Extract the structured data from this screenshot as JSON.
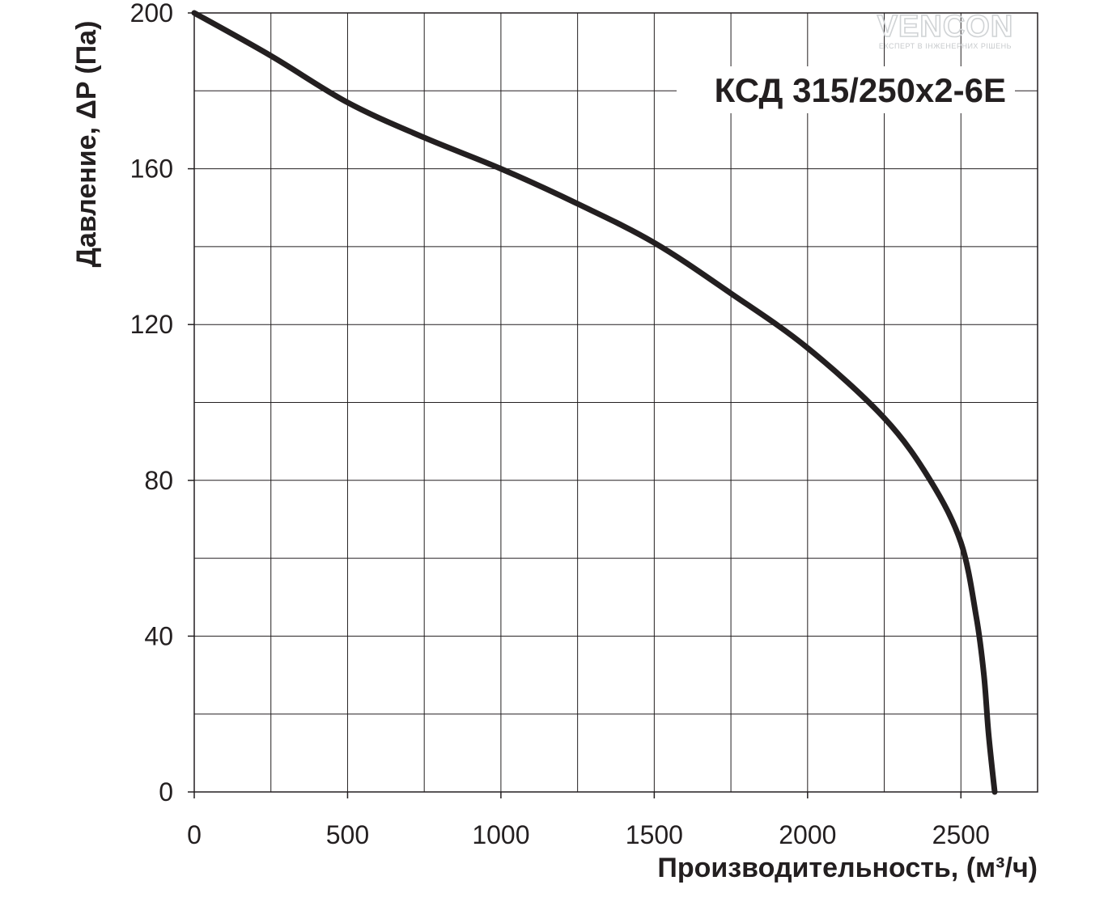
{
  "watermark": {
    "brand": "VENCON",
    "tagline": "ЕКСПЕРТ В ІНЖЕНЕРНИХ РІШЕНЬ"
  },
  "chart_data": {
    "type": "line",
    "title": "КСД 315/250x2-6Е",
    "xlabel": "Производительность, (м³/ч)",
    "ylabel": "Давление, ΔP (Па)",
    "xlim": [
      0,
      2750
    ],
    "ylim": [
      0,
      200
    ],
    "x_ticks": [
      0,
      500,
      1000,
      1500,
      2000,
      2500
    ],
    "y_ticks": [
      0,
      40,
      80,
      120,
      160,
      200
    ],
    "x_grid_step": 250,
    "y_grid_step": 20,
    "grid": true,
    "series": [
      {
        "color": "#231f20",
        "x": [
          0,
          250,
          500,
          750,
          1000,
          1250,
          1500,
          1750,
          2000,
          2250,
          2400,
          2500,
          2550,
          2575,
          2590,
          2610
        ],
        "y": [
          200,
          189,
          177,
          168,
          160,
          151,
          141,
          128,
          114,
          96,
          80,
          64,
          45,
          30,
          15,
          0
        ]
      }
    ]
  }
}
